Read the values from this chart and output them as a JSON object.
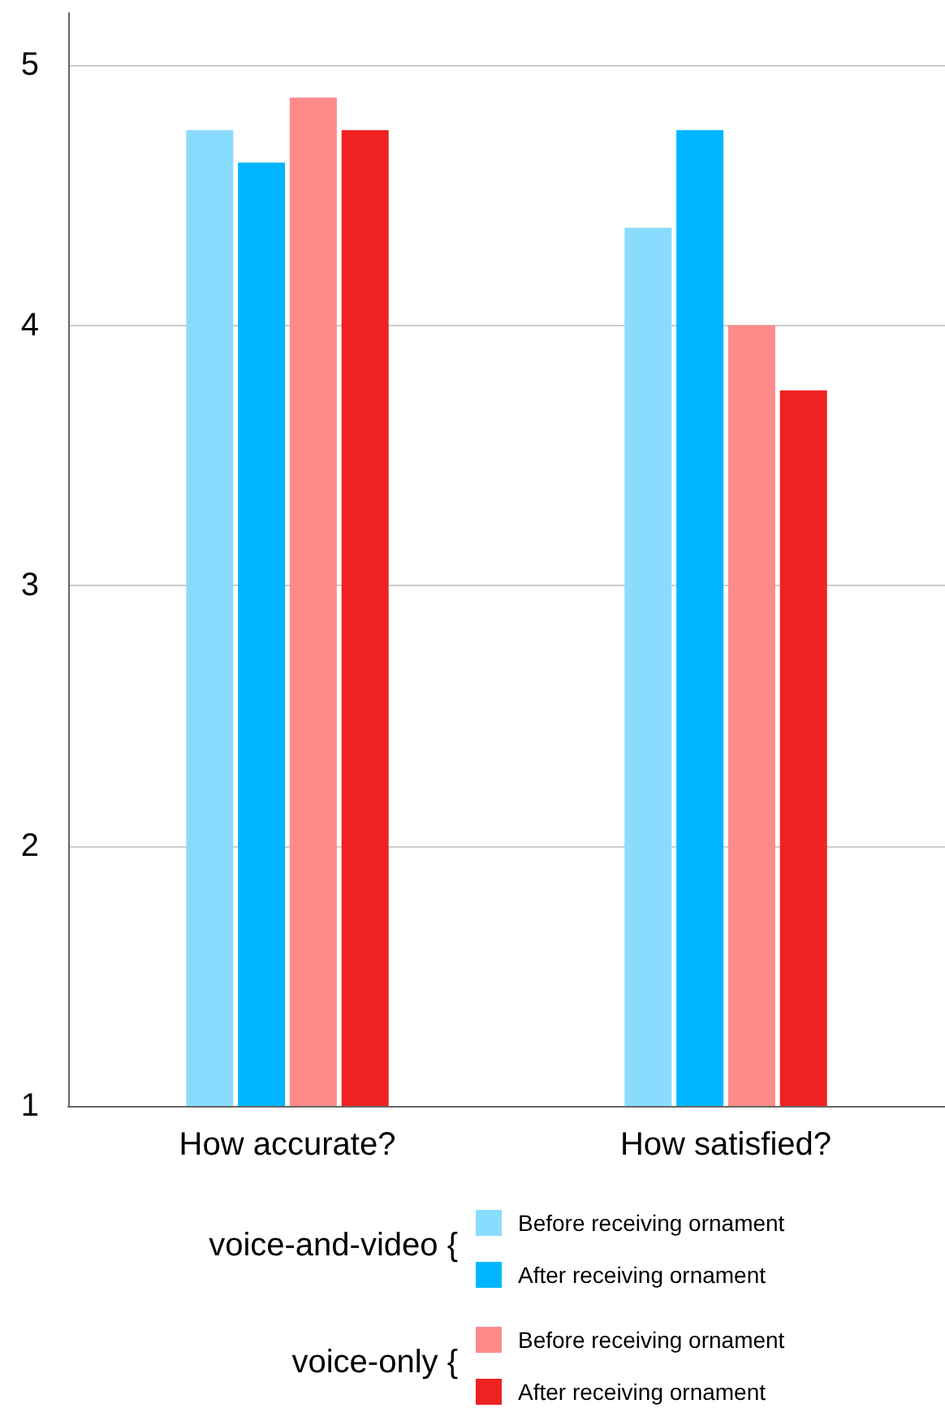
{
  "chart_data": {
    "type": "bar",
    "categories": [
      "How accurate?",
      "How satisfied?"
    ],
    "series": [
      {
        "name": "Before receiving ornament",
        "color": "#8adcff",
        "values": [
          4.75,
          4.375
        ]
      },
      {
        "name": "After receiving ornament",
        "color": "#00b6ff",
        "values": [
          4.625,
          4.75
        ]
      },
      {
        "name": "Before receiving ornament",
        "color": "#ff8a8a",
        "values": [
          4.875,
          4.0
        ]
      },
      {
        "name": "After receiving ornament",
        "color": "#ee2222",
        "values": [
          4.75,
          3.75
        ]
      }
    ],
    "annotations": [
      "voice-and-video {",
      "voice-only {"
    ],
    "ylim": [
      1,
      5.2
    ],
    "yticks": [
      1,
      2,
      3,
      4,
      5
    ],
    "grid": "y",
    "legend": "bottom"
  }
}
